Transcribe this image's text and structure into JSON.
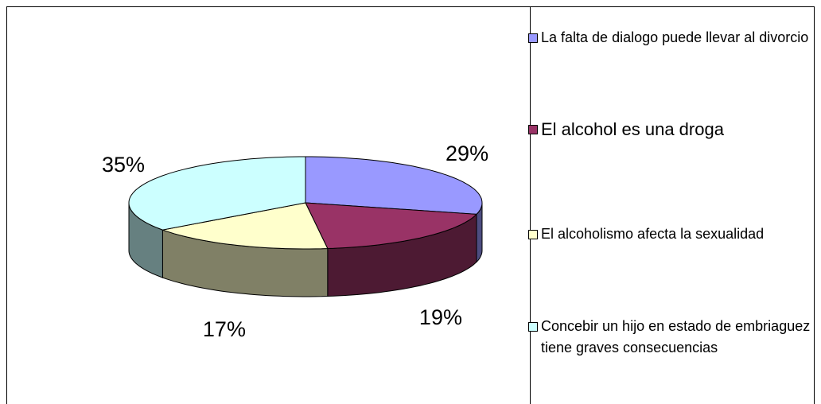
{
  "chart_data": {
    "type": "pie",
    "categories": [
      "La falta de dialogo puede llevar al divorcio",
      "El alcohol es una droga",
      "El alcoholismo afecta la sexualidad",
      "Concebir un hijo en estado de embriaguez tiene graves consecuencias"
    ],
    "values": [
      29,
      19,
      17,
      35
    ],
    "value_labels": [
      "29%",
      "19%",
      "17%",
      "35%"
    ],
    "colors": [
      "#9999ff",
      "#993366",
      "#ffffcc",
      "#ccffff"
    ],
    "legend": "right"
  }
}
